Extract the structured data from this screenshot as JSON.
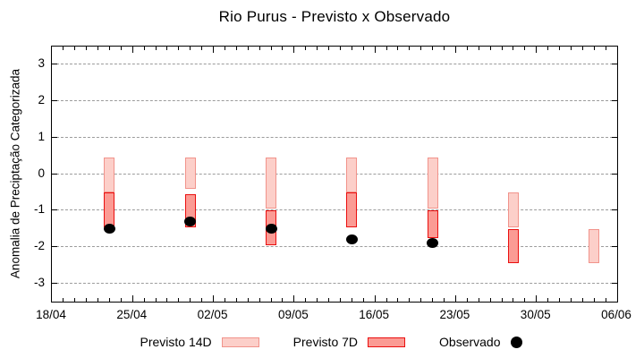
{
  "chart_data": {
    "type": "bar",
    "title": "Rio Purus - Previsto x Observado",
    "xlabel": "",
    "ylabel": "Anomalia de Preciptação Categorizada",
    "ylim": [
      -3.5,
      3.5
    ],
    "yticks": [
      -3,
      -2,
      -1,
      0,
      1,
      2,
      3
    ],
    "grid": "horizontal dashed gridlines at integer y values",
    "legend_position": "below chart, horizontal",
    "x_axis": {
      "start_label": "18/04",
      "end_label": "06/06",
      "tick_labels": [
        "18/04",
        "25/04",
        "02/05",
        "09/05",
        "16/05",
        "23/05",
        "30/05",
        "06/06"
      ],
      "tick_days": [
        0,
        7,
        14,
        21,
        28,
        35,
        42,
        49
      ],
      "total_days": 49,
      "minor_tick_every_days": 1
    },
    "legend": [
      {
        "label": "Previsto 14D",
        "marker": "box",
        "fill": "#fccfc9",
        "border": "#f1938b"
      },
      {
        "label": "Previsto 7D",
        "marker": "box",
        "fill": "#fb9b94",
        "border": "#ea0f0f"
      },
      {
        "label": "Observado",
        "marker": "dot",
        "fill": "#000000"
      }
    ],
    "series": [
      {
        "name": "Previsto 14D",
        "type": "range_bar",
        "fill": "#fccfc9",
        "border": "#f1938b",
        "points": [
          {
            "date": "23/04",
            "day": 5,
            "top": 0.45,
            "bottom": -0.5
          },
          {
            "date": "30/04",
            "day": 12,
            "top": 0.45,
            "bottom": -0.4
          },
          {
            "date": "07/05",
            "day": 19,
            "top": 0.45,
            "bottom": -0.95
          },
          {
            "date": "14/05",
            "day": 26,
            "top": 0.45,
            "bottom": -0.5
          },
          {
            "date": "21/05",
            "day": 33,
            "top": 0.45,
            "bottom": -0.95
          },
          {
            "date": "28/05",
            "day": 40,
            "top": -0.5,
            "bottom": -1.45
          },
          {
            "date": "04/06",
            "day": 47,
            "top": -1.5,
            "bottom": -2.45
          }
        ]
      },
      {
        "name": "Previsto 7D",
        "type": "range_bar",
        "fill": "#fb9b94",
        "border": "#ea0f0f",
        "points": [
          {
            "date": "23/04",
            "day": 5,
            "top": -0.5,
            "bottom": -1.45
          },
          {
            "date": "30/04",
            "day": 12,
            "top": -0.55,
            "bottom": -1.45
          },
          {
            "date": "07/05",
            "day": 19,
            "top": -1.0,
            "bottom": -1.95
          },
          {
            "date": "14/05",
            "day": 26,
            "top": -0.5,
            "bottom": -1.45
          },
          {
            "date": "21/05",
            "day": 33,
            "top": -1.0,
            "bottom": -1.75
          },
          {
            "date": "28/05",
            "day": 40,
            "top": -1.5,
            "bottom": -2.45
          }
        ]
      },
      {
        "name": "Observado",
        "type": "dot",
        "color": "#000000",
        "points": [
          {
            "date": "23/04",
            "day": 5,
            "value": -1.5
          },
          {
            "date": "30/04",
            "day": 12,
            "value": -1.3
          },
          {
            "date": "07/05",
            "day": 19,
            "value": -1.5
          },
          {
            "date": "14/05",
            "day": 26,
            "value": -1.8
          },
          {
            "date": "21/05",
            "day": 33,
            "value": -1.9
          }
        ]
      }
    ]
  }
}
